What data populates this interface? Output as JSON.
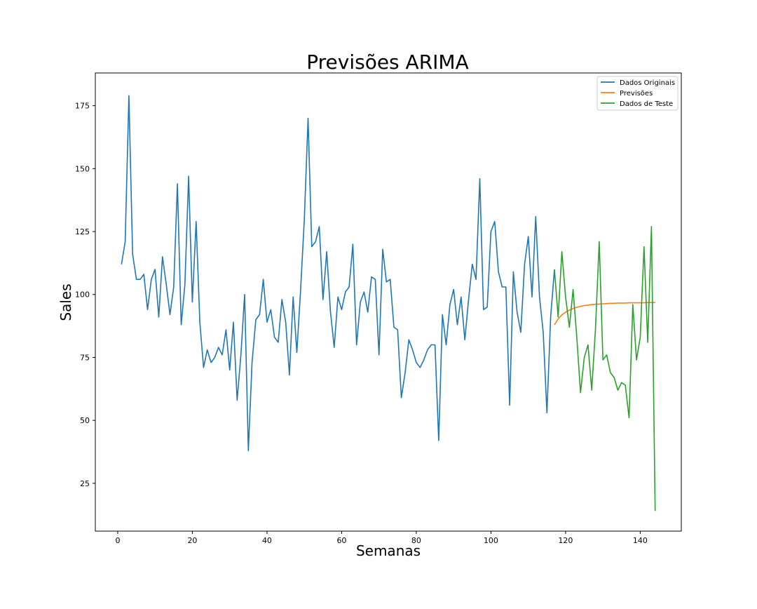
{
  "chart_data": {
    "type": "line",
    "title": "Previsões ARIMA",
    "xlabel": "Semanas",
    "ylabel": "Sales",
    "xlim": [
      -6,
      151
    ],
    "ylim": [
      6,
      188
    ],
    "xticks": [
      0,
      20,
      40,
      60,
      80,
      100,
      120,
      140
    ],
    "yticks": [
      25,
      50,
      75,
      100,
      125,
      150,
      175
    ],
    "grid": false,
    "legend": "top-right",
    "series": [
      {
        "name": "Dados Originais",
        "color": "#1f77b4",
        "x": [
          1,
          2,
          3,
          4,
          5,
          6,
          7,
          8,
          9,
          10,
          11,
          12,
          13,
          14,
          15,
          16,
          17,
          18,
          19,
          20,
          21,
          22,
          23,
          24,
          25,
          26,
          27,
          28,
          29,
          30,
          31,
          32,
          33,
          34,
          35,
          36,
          37,
          38,
          39,
          40,
          41,
          42,
          43,
          44,
          45,
          46,
          47,
          48,
          49,
          50,
          51,
          52,
          53,
          54,
          55,
          56,
          57,
          58,
          59,
          60,
          61,
          62,
          63,
          64,
          65,
          66,
          67,
          68,
          69,
          70,
          71,
          72,
          73,
          74,
          75,
          76,
          77,
          78,
          79,
          80,
          81,
          82,
          83,
          84,
          85,
          86,
          87,
          88,
          89,
          90,
          91,
          92,
          93,
          94,
          95,
          96,
          97,
          98,
          99,
          100,
          101,
          102,
          103,
          104,
          105,
          106,
          107,
          108,
          109,
          110,
          111,
          112,
          113,
          114,
          115,
          116,
          117
        ],
        "y": [
          112,
          121,
          179,
          116,
          106,
          106,
          108,
          94,
          106,
          110,
          91,
          115,
          104,
          92,
          103,
          144,
          88,
          104,
          147,
          97,
          129,
          89,
          71,
          78,
          73,
          75,
          79,
          76,
          86,
          70,
          89,
          58,
          76,
          100,
          38,
          73,
          90,
          92,
          106,
          89,
          94,
          83,
          81,
          98,
          89,
          68,
          99,
          77,
          102,
          130,
          170,
          119,
          121,
          127,
          98,
          117,
          93,
          79,
          99,
          94,
          101,
          103,
          120,
          80,
          97,
          101,
          93,
          107,
          106,
          76,
          118,
          105,
          106,
          87,
          86,
          59,
          69,
          82,
          78,
          73,
          71,
          74,
          78,
          80,
          80,
          42,
          92,
          80,
          96,
          102,
          88,
          99,
          82,
          98,
          112,
          106,
          146,
          94,
          95,
          125,
          129,
          109,
          103,
          103,
          56,
          109,
          93,
          85,
          112,
          123,
          99,
          131,
          99,
          85,
          53,
          91,
          110
        ]
      },
      {
        "name": "Previsões",
        "color": "#ff7f0e",
        "x": [
          117,
          118,
          119,
          120,
          121,
          122,
          123,
          124,
          125,
          126,
          127,
          128,
          129,
          130,
          131,
          132,
          133,
          134,
          135,
          136,
          137,
          138,
          139,
          140,
          141,
          142,
          143,
          144
        ],
        "y": [
          88,
          90.3,
          91.9,
          93,
          93.8,
          94.4,
          94.9,
          95.3,
          95.6,
          95.8,
          96,
          96.1,
          96.2,
          96.3,
          96.4,
          96.5,
          96.5,
          96.6,
          96.6,
          96.6,
          96.7,
          96.7,
          96.7,
          96.7,
          96.7,
          96.8,
          96.8,
          96.8
        ]
      },
      {
        "name": "Dados de Teste",
        "color": "#2ca02c",
        "x": [
          117,
          118,
          119,
          120,
          121,
          122,
          123,
          124,
          125,
          126,
          127,
          128,
          129,
          130,
          131,
          132,
          133,
          134,
          135,
          136,
          137,
          138,
          139,
          140,
          141,
          142,
          143,
          144
        ],
        "y": [
          110,
          91,
          117,
          99,
          87,
          102,
          83,
          61,
          75,
          80,
          62,
          86,
          121,
          74,
          76,
          69,
          67,
          62,
          65,
          64,
          51,
          96,
          74,
          83,
          119,
          81,
          127,
          14
        ]
      }
    ]
  }
}
